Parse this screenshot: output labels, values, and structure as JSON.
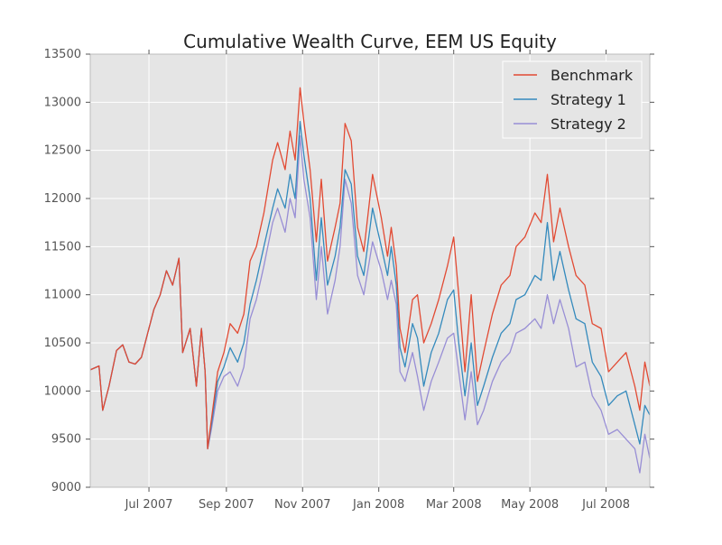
{
  "chart_data": {
    "type": "line",
    "title": "Cumulative Wealth Curve, EEM US Equity",
    "xlabel": "",
    "ylabel": "",
    "x_start": "2007-05-15",
    "x_end": "2008-08-05",
    "xlim": [
      "2007-05-15",
      "2008-08-05"
    ],
    "ylim": [
      9000,
      13500
    ],
    "grid": true,
    "legend_position": "top-right",
    "background": "#e5e5e5",
    "y_ticks": [
      9000,
      9500,
      10000,
      10500,
      11000,
      11500,
      12000,
      12500,
      13000,
      13500
    ],
    "x_ticks": [
      {
        "date": "2007-07-01",
        "label": "Jul 2007"
      },
      {
        "date": "2007-09-01",
        "label": "Sep 2007"
      },
      {
        "date": "2007-11-01",
        "label": "Nov 2007"
      },
      {
        "date": "2008-01-01",
        "label": "Jan 2008"
      },
      {
        "date": "2008-03-01",
        "label": "Mar 2008"
      },
      {
        "date": "2008-05-01",
        "label": "May 2008"
      },
      {
        "date": "2008-07-01",
        "label": "Jul 2008"
      }
    ],
    "series": [
      {
        "name": "Benchmark",
        "color": "#e24a33",
        "points": [
          [
            "2007-05-15",
            10220
          ],
          [
            "2007-05-22",
            10260
          ],
          [
            "2007-05-25",
            9800
          ],
          [
            "2007-05-30",
            10050
          ],
          [
            "2007-06-05",
            10420
          ],
          [
            "2007-06-10",
            10480
          ],
          [
            "2007-06-15",
            10300
          ],
          [
            "2007-06-20",
            10280
          ],
          [
            "2007-06-25",
            10350
          ],
          [
            "2007-07-01",
            10650
          ],
          [
            "2007-07-05",
            10850
          ],
          [
            "2007-07-10",
            11000
          ],
          [
            "2007-07-15",
            11250
          ],
          [
            "2007-07-20",
            11100
          ],
          [
            "2007-07-25",
            11380
          ],
          [
            "2007-07-28",
            10400
          ],
          [
            "2007-08-03",
            10650
          ],
          [
            "2007-08-08",
            10050
          ],
          [
            "2007-08-12",
            10650
          ],
          [
            "2007-08-15",
            10200
          ],
          [
            "2007-08-17",
            9400
          ],
          [
            "2007-08-20",
            9700
          ],
          [
            "2007-08-25",
            10200
          ],
          [
            "2007-08-30",
            10400
          ],
          [
            "2007-09-04",
            10700
          ],
          [
            "2007-09-10",
            10600
          ],
          [
            "2007-09-15",
            10800
          ],
          [
            "2007-09-20",
            11350
          ],
          [
            "2007-09-25",
            11500
          ],
          [
            "2007-10-01",
            11850
          ],
          [
            "2007-10-08",
            12400
          ],
          [
            "2007-10-12",
            12580
          ],
          [
            "2007-10-18",
            12300
          ],
          [
            "2007-10-22",
            12700
          ],
          [
            "2007-10-26",
            12400
          ],
          [
            "2007-10-30",
            13150
          ],
          [
            "2007-11-02",
            12800
          ],
          [
            "2007-11-07",
            12300
          ],
          [
            "2007-11-12",
            11550
          ],
          [
            "2007-11-16",
            12200
          ],
          [
            "2007-11-21",
            11350
          ],
          [
            "2007-11-27",
            11700
          ],
          [
            "2007-12-01",
            11950
          ],
          [
            "2007-12-05",
            12780
          ],
          [
            "2007-12-10",
            12600
          ],
          [
            "2007-12-15",
            11700
          ],
          [
            "2007-12-20",
            11450
          ],
          [
            "2007-12-27",
            12250
          ],
          [
            "2008-01-03",
            11800
          ],
          [
            "2008-01-08",
            11400
          ],
          [
            "2008-01-11",
            11700
          ],
          [
            "2008-01-15",
            11300
          ],
          [
            "2008-01-18",
            10650
          ],
          [
            "2008-01-22",
            10400
          ],
          [
            "2008-01-28",
            10950
          ],
          [
            "2008-02-01",
            11000
          ],
          [
            "2008-02-06",
            10500
          ],
          [
            "2008-02-12",
            10700
          ],
          [
            "2008-02-18",
            10950
          ],
          [
            "2008-02-25",
            11300
          ],
          [
            "2008-03-01",
            11600
          ],
          [
            "2008-03-05",
            11000
          ],
          [
            "2008-03-10",
            10200
          ],
          [
            "2008-03-15",
            11000
          ],
          [
            "2008-03-20",
            10100
          ],
          [
            "2008-03-25",
            10400
          ],
          [
            "2008-04-01",
            10800
          ],
          [
            "2008-04-08",
            11100
          ],
          [
            "2008-04-15",
            11200
          ],
          [
            "2008-04-20",
            11500
          ],
          [
            "2008-04-27",
            11600
          ],
          [
            "2008-05-05",
            11850
          ],
          [
            "2008-05-10",
            11750
          ],
          [
            "2008-05-15",
            12250
          ],
          [
            "2008-05-20",
            11550
          ],
          [
            "2008-05-25",
            11900
          ],
          [
            "2008-06-01",
            11500
          ],
          [
            "2008-06-07",
            11200
          ],
          [
            "2008-06-14",
            11100
          ],
          [
            "2008-06-20",
            10700
          ],
          [
            "2008-06-27",
            10650
          ],
          [
            "2008-07-03",
            10200
          ],
          [
            "2008-07-10",
            10300
          ],
          [
            "2008-07-17",
            10400
          ],
          [
            "2008-07-24",
            10050
          ],
          [
            "2008-07-28",
            9800
          ],
          [
            "2008-08-01",
            10300
          ],
          [
            "2008-08-05",
            10050
          ]
        ]
      },
      {
        "name": "Strategy 1",
        "color": "#348abd",
        "points": [
          [
            "2007-05-15",
            10220
          ],
          [
            "2007-05-22",
            10260
          ],
          [
            "2007-05-25",
            9800
          ],
          [
            "2007-05-30",
            10050
          ],
          [
            "2007-06-05",
            10420
          ],
          [
            "2007-06-10",
            10480
          ],
          [
            "2007-06-15",
            10300
          ],
          [
            "2007-06-20",
            10280
          ],
          [
            "2007-06-25",
            10350
          ],
          [
            "2007-07-01",
            10650
          ],
          [
            "2007-07-05",
            10850
          ],
          [
            "2007-07-10",
            11000
          ],
          [
            "2007-07-15",
            11250
          ],
          [
            "2007-07-20",
            11100
          ],
          [
            "2007-07-25",
            11380
          ],
          [
            "2007-07-28",
            10400
          ],
          [
            "2007-08-03",
            10650
          ],
          [
            "2007-08-08",
            10050
          ],
          [
            "2007-08-12",
            10650
          ],
          [
            "2007-08-15",
            10200
          ],
          [
            "2007-08-17",
            9400
          ],
          [
            "2007-08-20",
            9650
          ],
          [
            "2007-08-25",
            10100
          ],
          [
            "2007-08-30",
            10250
          ],
          [
            "2007-09-04",
            10450
          ],
          [
            "2007-09-10",
            10300
          ],
          [
            "2007-09-15",
            10500
          ],
          [
            "2007-09-20",
            10900
          ],
          [
            "2007-09-25",
            11150
          ],
          [
            "2007-10-01",
            11500
          ],
          [
            "2007-10-08",
            11900
          ],
          [
            "2007-10-12",
            12100
          ],
          [
            "2007-10-18",
            11900
          ],
          [
            "2007-10-22",
            12250
          ],
          [
            "2007-10-26",
            12000
          ],
          [
            "2007-10-30",
            12800
          ],
          [
            "2007-11-02",
            12450
          ],
          [
            "2007-11-07",
            12000
          ],
          [
            "2007-11-12",
            11150
          ],
          [
            "2007-11-16",
            11800
          ],
          [
            "2007-11-21",
            11100
          ],
          [
            "2007-11-27",
            11400
          ],
          [
            "2007-12-01",
            11700
          ],
          [
            "2007-12-05",
            12300
          ],
          [
            "2007-12-10",
            12150
          ],
          [
            "2007-12-15",
            11400
          ],
          [
            "2007-12-20",
            11200
          ],
          [
            "2007-12-27",
            11900
          ],
          [
            "2008-01-03",
            11500
          ],
          [
            "2008-01-08",
            11200
          ],
          [
            "2008-01-11",
            11500
          ],
          [
            "2008-01-15",
            11100
          ],
          [
            "2008-01-18",
            10450
          ],
          [
            "2008-01-22",
            10250
          ],
          [
            "2008-01-28",
            10700
          ],
          [
            "2008-02-01",
            10550
          ],
          [
            "2008-02-06",
            10050
          ],
          [
            "2008-02-12",
            10400
          ],
          [
            "2008-02-18",
            10600
          ],
          [
            "2008-02-25",
            10950
          ],
          [
            "2008-03-01",
            11050
          ],
          [
            "2008-03-05",
            10500
          ],
          [
            "2008-03-10",
            9950
          ],
          [
            "2008-03-15",
            10500
          ],
          [
            "2008-03-20",
            9850
          ],
          [
            "2008-03-25",
            10050
          ],
          [
            "2008-04-01",
            10350
          ],
          [
            "2008-04-08",
            10600
          ],
          [
            "2008-04-15",
            10700
          ],
          [
            "2008-04-20",
            10950
          ],
          [
            "2008-04-27",
            11000
          ],
          [
            "2008-05-05",
            11200
          ],
          [
            "2008-05-10",
            11150
          ],
          [
            "2008-05-15",
            11750
          ],
          [
            "2008-05-20",
            11150
          ],
          [
            "2008-05-25",
            11450
          ],
          [
            "2008-06-01",
            11050
          ],
          [
            "2008-06-07",
            10750
          ],
          [
            "2008-06-14",
            10700
          ],
          [
            "2008-06-20",
            10300
          ],
          [
            "2008-06-27",
            10150
          ],
          [
            "2008-07-03",
            9850
          ],
          [
            "2008-07-10",
            9950
          ],
          [
            "2008-07-17",
            10000
          ],
          [
            "2008-07-24",
            9650
          ],
          [
            "2008-07-28",
            9450
          ],
          [
            "2008-08-01",
            9850
          ],
          [
            "2008-08-05",
            9750
          ]
        ]
      },
      {
        "name": "Strategy 2",
        "color": "#988ed5",
        "points": [
          [
            "2007-05-15",
            10220
          ],
          [
            "2007-05-22",
            10260
          ],
          [
            "2007-05-25",
            9800
          ],
          [
            "2007-05-30",
            10050
          ],
          [
            "2007-06-05",
            10420
          ],
          [
            "2007-06-10",
            10480
          ],
          [
            "2007-06-15",
            10300
          ],
          [
            "2007-06-20",
            10280
          ],
          [
            "2007-06-25",
            10350
          ],
          [
            "2007-07-01",
            10650
          ],
          [
            "2007-07-05",
            10850
          ],
          [
            "2007-07-10",
            11000
          ],
          [
            "2007-07-15",
            11250
          ],
          [
            "2007-07-20",
            11100
          ],
          [
            "2007-07-25",
            11380
          ],
          [
            "2007-07-28",
            10400
          ],
          [
            "2007-08-03",
            10650
          ],
          [
            "2007-08-08",
            10050
          ],
          [
            "2007-08-12",
            10650
          ],
          [
            "2007-08-15",
            10200
          ],
          [
            "2007-08-17",
            9400
          ],
          [
            "2007-08-20",
            9600
          ],
          [
            "2007-08-25",
            10000
          ],
          [
            "2007-08-30",
            10150
          ],
          [
            "2007-09-04",
            10200
          ],
          [
            "2007-09-10",
            10050
          ],
          [
            "2007-09-15",
            10250
          ],
          [
            "2007-09-20",
            10750
          ],
          [
            "2007-09-25",
            10950
          ],
          [
            "2007-10-01",
            11300
          ],
          [
            "2007-10-08",
            11750
          ],
          [
            "2007-10-12",
            11900
          ],
          [
            "2007-10-18",
            11650
          ],
          [
            "2007-10-22",
            12000
          ],
          [
            "2007-10-26",
            11800
          ],
          [
            "2007-10-30",
            12650
          ],
          [
            "2007-11-02",
            12200
          ],
          [
            "2007-11-07",
            11800
          ],
          [
            "2007-11-12",
            10950
          ],
          [
            "2007-11-16",
            11500
          ],
          [
            "2007-11-21",
            10800
          ],
          [
            "2007-11-27",
            11150
          ],
          [
            "2007-12-01",
            11500
          ],
          [
            "2007-12-05",
            12200
          ],
          [
            "2007-12-10",
            11950
          ],
          [
            "2007-12-15",
            11200
          ],
          [
            "2007-12-20",
            11000
          ],
          [
            "2007-12-27",
            11550
          ],
          [
            "2008-01-03",
            11250
          ],
          [
            "2008-01-08",
            10950
          ],
          [
            "2008-01-11",
            11150
          ],
          [
            "2008-01-15",
            10900
          ],
          [
            "2008-01-18",
            10200
          ],
          [
            "2008-01-22",
            10100
          ],
          [
            "2008-01-28",
            10400
          ],
          [
            "2008-02-01",
            10150
          ],
          [
            "2008-02-06",
            9800
          ],
          [
            "2008-02-12",
            10100
          ],
          [
            "2008-02-18",
            10300
          ],
          [
            "2008-02-25",
            10550
          ],
          [
            "2008-03-01",
            10600
          ],
          [
            "2008-03-05",
            10200
          ],
          [
            "2008-03-10",
            9700
          ],
          [
            "2008-03-15",
            10200
          ],
          [
            "2008-03-20",
            9650
          ],
          [
            "2008-03-25",
            9800
          ],
          [
            "2008-04-01",
            10100
          ],
          [
            "2008-04-08",
            10300
          ],
          [
            "2008-04-15",
            10400
          ],
          [
            "2008-04-20",
            10600
          ],
          [
            "2008-04-27",
            10650
          ],
          [
            "2008-05-05",
            10750
          ],
          [
            "2008-05-10",
            10650
          ],
          [
            "2008-05-15",
            11000
          ],
          [
            "2008-05-20",
            10700
          ],
          [
            "2008-05-25",
            10950
          ],
          [
            "2008-06-01",
            10650
          ],
          [
            "2008-06-07",
            10250
          ],
          [
            "2008-06-14",
            10300
          ],
          [
            "2008-06-20",
            9950
          ],
          [
            "2008-06-27",
            9800
          ],
          [
            "2008-07-03",
            9550
          ],
          [
            "2008-07-10",
            9600
          ],
          [
            "2008-07-17",
            9500
          ],
          [
            "2008-07-24",
            9400
          ],
          [
            "2008-07-28",
            9150
          ],
          [
            "2008-08-01",
            9550
          ],
          [
            "2008-08-05",
            9300
          ]
        ]
      }
    ]
  }
}
